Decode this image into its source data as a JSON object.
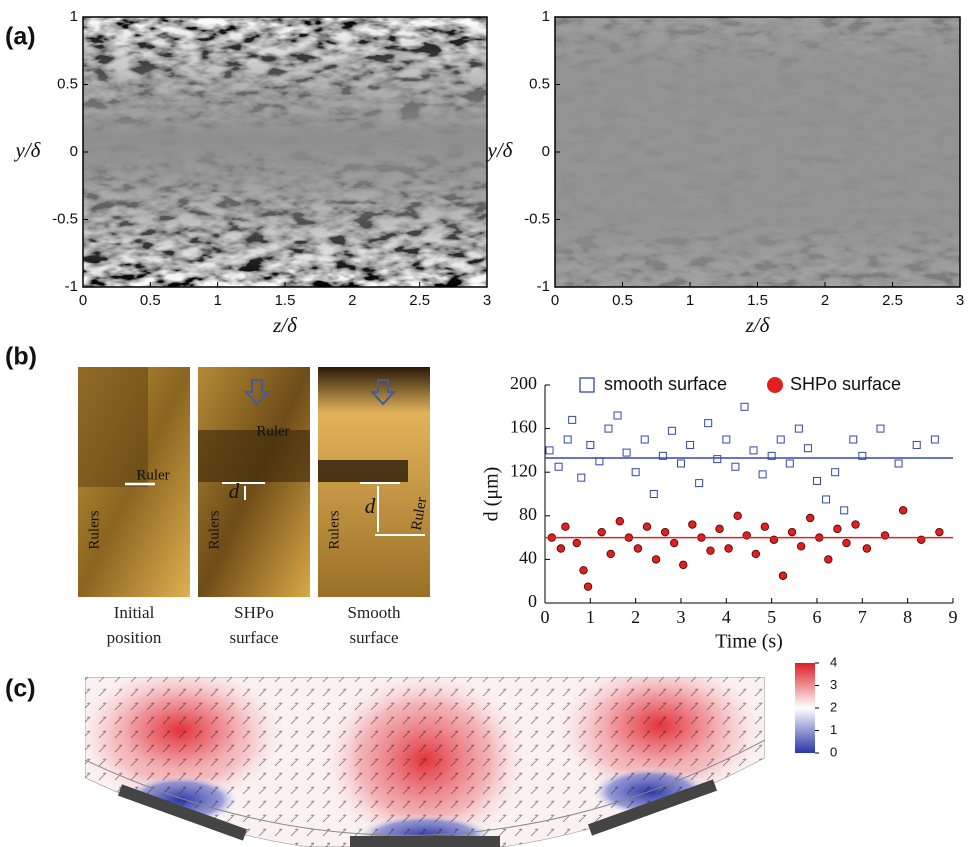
{
  "panel_labels": [
    "(a)",
    "(b)",
    "(c)"
  ],
  "photos": [
    {
      "caption": "Initial position",
      "labels": [
        "Ruler",
        "Rulers"
      ]
    },
    {
      "caption": "SHPo surface",
      "labels": [
        "Ruler",
        "Rulers",
        "d"
      ]
    },
    {
      "caption": "Smooth surface",
      "labels": [
        "Ruler",
        "Rulers",
        "d"
      ]
    }
  ],
  "chart_data": [
    {
      "type": "image",
      "xlabel": "z/δ",
      "ylabel": "y/δ",
      "xlim": [
        0,
        3
      ],
      "ylim": [
        -1,
        1
      ],
      "xticks": [
        0,
        0.5,
        1,
        1.5,
        2,
        2.5,
        3
      ],
      "yticks": [
        -1,
        -0.5,
        0,
        0.5,
        1
      ]
    },
    {
      "type": "image",
      "xlabel": "z/δ",
      "ylabel": "y/δ",
      "xlim": [
        0,
        3
      ],
      "ylim": [
        -1,
        1
      ],
      "xticks": [
        0,
        0.5,
        1,
        1.5,
        2,
        2.5,
        3
      ],
      "yticks": [
        -1,
        -0.5,
        0,
        0.5,
        1
      ]
    },
    {
      "type": "scatter",
      "xlabel": "Time (s)",
      "ylabel": "d (μm)",
      "xlim": [
        0,
        9
      ],
      "ylim": [
        0,
        200
      ],
      "xticks": [
        0,
        1,
        2,
        3,
        4,
        5,
        6,
        7,
        8,
        9
      ],
      "yticks": [
        0,
        40,
        80,
        120,
        160,
        200
      ],
      "series": [
        {
          "name": "smooth surface",
          "color": "#3346b0",
          "mean": 133,
          "x": [
            0.1,
            0.3,
            0.5,
            0.6,
            0.8,
            1.0,
            1.2,
            1.4,
            1.6,
            1.8,
            2.0,
            2.2,
            2.4,
            2.6,
            2.8,
            3.0,
            3.2,
            3.4,
            3.6,
            3.8,
            4.0,
            4.2,
            4.4,
            4.6,
            4.8,
            5.0,
            5.2,
            5.4,
            5.6,
            5.8,
            6.0,
            6.2,
            6.4,
            6.6,
            6.8,
            7.0,
            7.4,
            7.8,
            8.2,
            8.6
          ],
          "values": [
            140,
            125,
            150,
            168,
            115,
            145,
            130,
            160,
            172,
            138,
            120,
            150,
            100,
            135,
            158,
            128,
            145,
            110,
            165,
            132,
            150,
            125,
            180,
            140,
            118,
            135,
            150,
            128,
            160,
            142,
            112,
            95,
            120,
            85,
            150,
            135,
            160,
            128,
            145,
            150
          ]
        },
        {
          "name": "SHPo surface",
          "color": "#e02020",
          "mean": 60,
          "x": [
            0.15,
            0.35,
            0.45,
            0.7,
            0.85,
            0.95,
            1.25,
            1.45,
            1.65,
            1.85,
            2.05,
            2.25,
            2.45,
            2.65,
            2.85,
            3.05,
            3.25,
            3.45,
            3.65,
            3.85,
            4.05,
            4.25,
            4.45,
            4.65,
            4.85,
            5.05,
            5.25,
            5.45,
            5.65,
            5.85,
            6.05,
            6.25,
            6.45,
            6.65,
            6.85,
            7.1,
            7.5,
            7.9,
            8.3,
            8.7
          ],
          "values": [
            60,
            50,
            70,
            55,
            30,
            15,
            65,
            45,
            75,
            60,
            50,
            70,
            40,
            65,
            55,
            35,
            72,
            60,
            48,
            68,
            50,
            80,
            62,
            45,
            70,
            58,
            25,
            65,
            52,
            78,
            60,
            40,
            68,
            55,
            72,
            50,
            62,
            85,
            58,
            65
          ]
        }
      ]
    },
    {
      "type": "colorbar",
      "ylim": [
        0,
        4
      ],
      "yticks": [
        0,
        1,
        2,
        3,
        4
      ],
      "colors": [
        "#2a35a8",
        "#ffffff",
        "#dd1f25"
      ]
    }
  ]
}
